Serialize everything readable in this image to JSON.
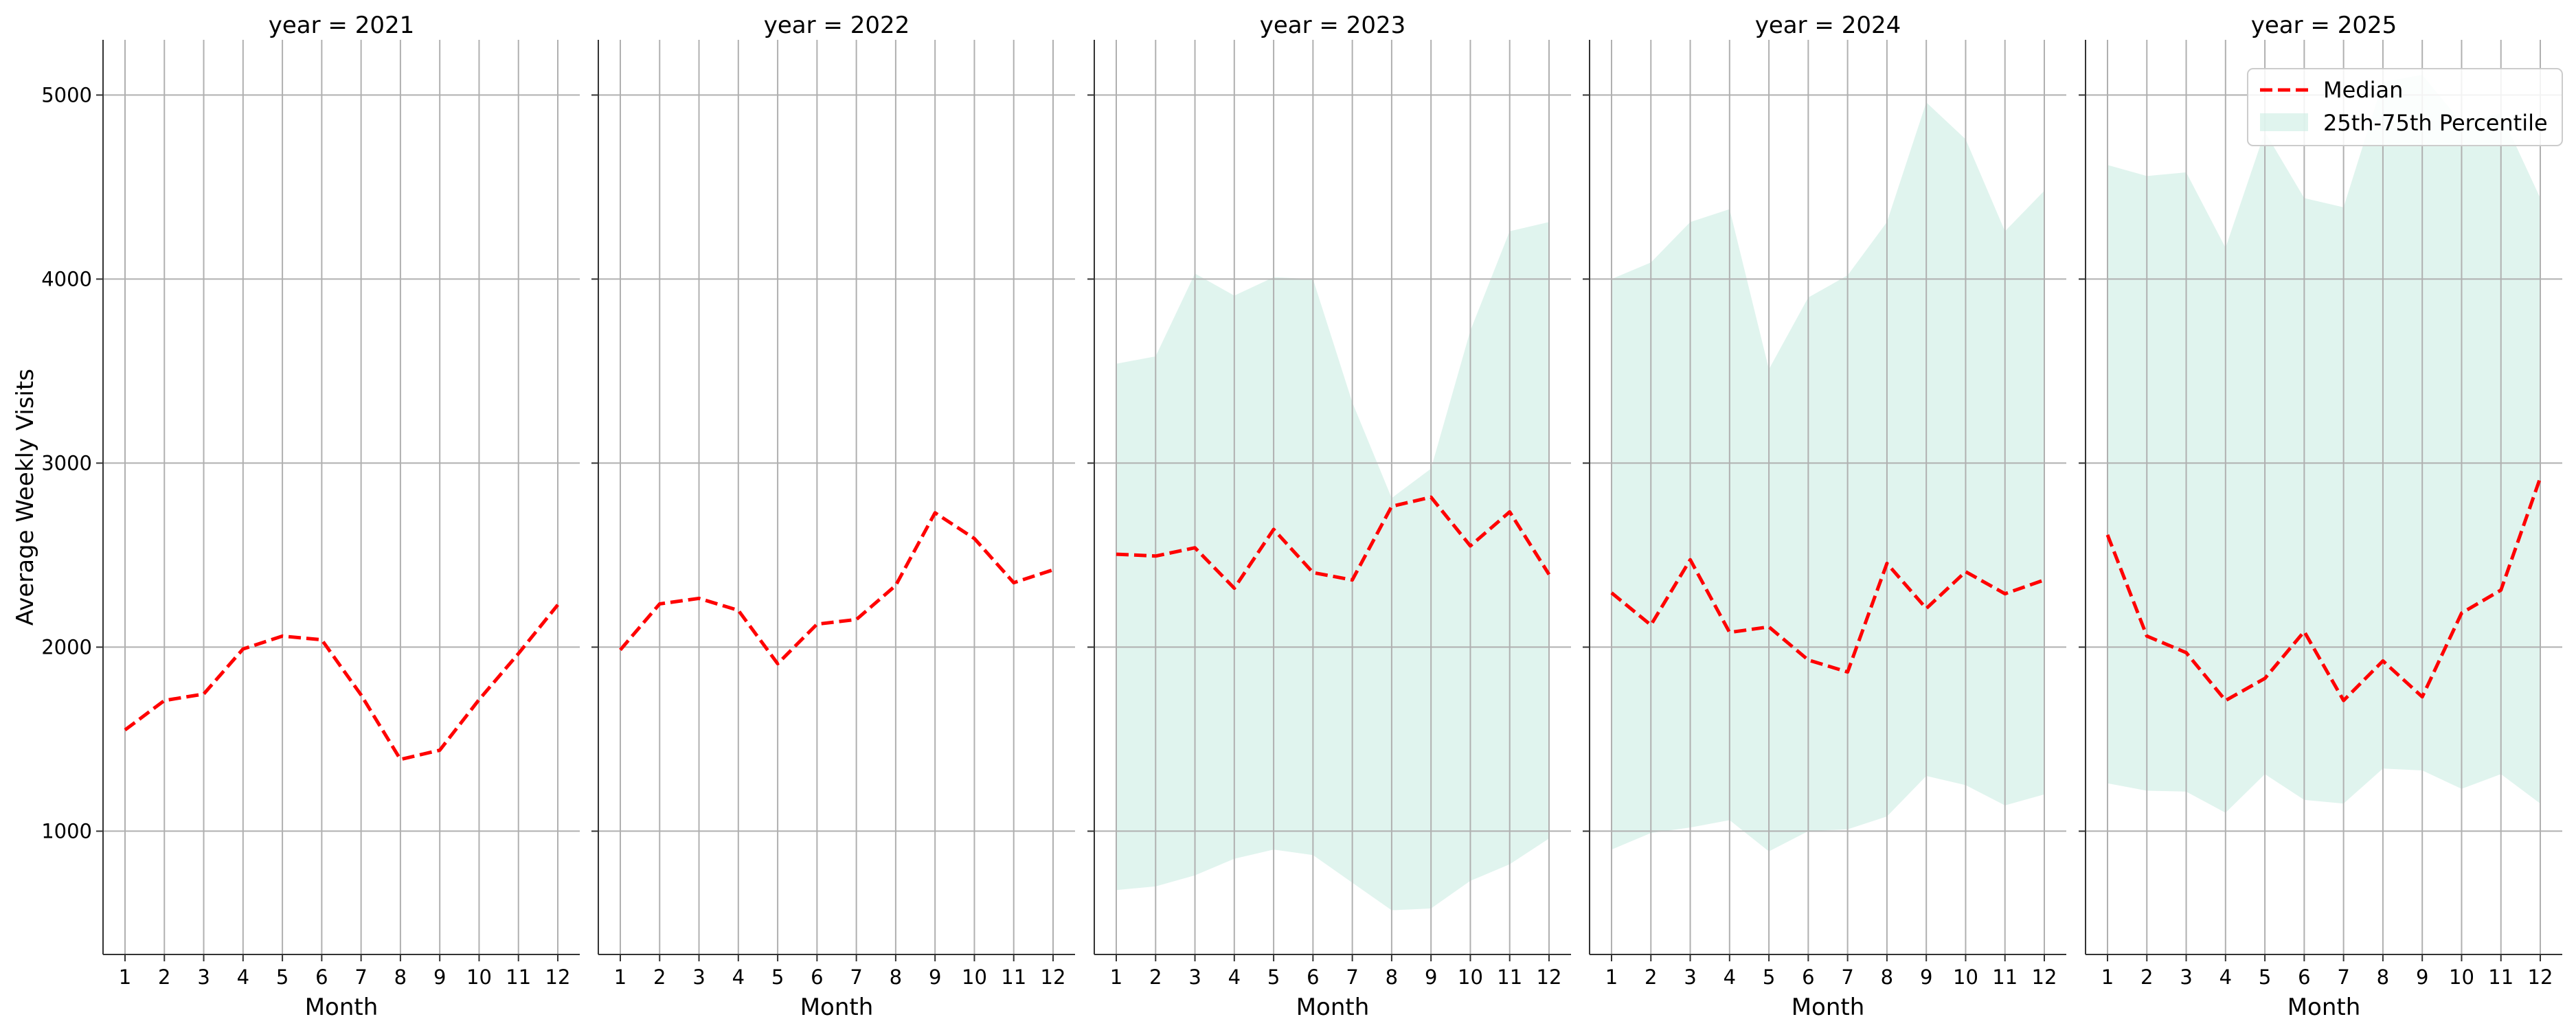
{
  "chart_data": {
    "type": "line",
    "ylabel": "Average Weekly Visits",
    "xlabel": "Month",
    "x": [
      1,
      2,
      3,
      4,
      5,
      6,
      7,
      8,
      9,
      10,
      11,
      12
    ],
    "x_tick_labels": [
      "1",
      "2",
      "3",
      "4",
      "5",
      "6",
      "7",
      "8",
      "9",
      "10",
      "11",
      "12"
    ],
    "ylim": [
      330,
      5300
    ],
    "y_ticks": [
      1000,
      2000,
      3000,
      4000,
      5000
    ],
    "y_tick_labels": [
      "1000",
      "2000",
      "3000",
      "4000",
      "5000"
    ],
    "grid": true,
    "legend": {
      "placement": "top-right",
      "entries": [
        "Median",
        "25th-75th Percentile"
      ]
    },
    "colors": {
      "median": "#ff0000",
      "band": "#c6ebe0",
      "grid": "#b0b0b0",
      "axis": "#000000"
    },
    "panels": [
      {
        "title": "year = 2021",
        "series": [
          {
            "name": "Median",
            "values": [
              1550,
              1710,
              1745,
              1990,
              2060,
              2040,
              1740,
              1390,
              1440,
              1715,
              1965,
              2230
            ]
          },
          {
            "name": "25th-75th Percentile",
            "lower": null,
            "upper": null
          }
        ]
      },
      {
        "title": "year = 2022",
        "series": [
          {
            "name": "Median",
            "values": [
              1985,
              2235,
              2265,
              2200,
              1910,
              2125,
              2150,
              2335,
              2730,
              2590,
              2350,
              2420
            ]
          },
          {
            "name": "25th-75th Percentile",
            "lower": null,
            "upper": null
          }
        ]
      },
      {
        "title": "year = 2023",
        "series": [
          {
            "name": "Median",
            "values": [
              2505,
              2495,
              2540,
              2320,
              2640,
              2405,
              2365,
              2765,
              2815,
              2550,
              2735,
              2395
            ]
          },
          {
            "name": "25th-75th Percentile",
            "lower": [
              680,
              700,
              760,
              850,
              900,
              870,
              720,
              570,
              580,
              730,
              820,
              960
            ],
            "upper": [
              3540,
              3580,
              4030,
              3910,
              4010,
              4000,
              3330,
              2810,
              2970,
              3720,
              4260,
              4310
            ]
          }
        ]
      },
      {
        "title": "year = 2024",
        "series": [
          {
            "name": "Median",
            "values": [
              2295,
              2120,
              2475,
              2080,
              2110,
              1930,
              1865,
              2455,
              2210,
              2410,
              2290,
              2365
            ]
          },
          {
            "name": "25th-75th Percentile",
            "lower": [
              900,
              990,
              1020,
              1060,
              890,
              1000,
              1010,
              1080,
              1300,
              1250,
              1140,
              1200
            ],
            "upper": [
              4000,
              4090,
              4310,
              4380,
              3510,
              3900,
              4020,
              4310,
              4960,
              4760,
              4260,
              4480
            ]
          }
        ]
      },
      {
        "title": "year = 2025",
        "series": [
          {
            "name": "Median",
            "values": [
              2610,
              2060,
              1970,
              1710,
              1830,
              2085,
              1710,
              1925,
              1730,
              2185,
              2310,
              2920
            ]
          },
          {
            "name": "25th-75th Percentile",
            "lower": [
              1260,
              1220,
              1215,
              1100,
              1310,
              1170,
              1150,
              1340,
              1330,
              1230,
              1310,
              1150
            ],
            "upper": [
              4620,
              4560,
              4580,
              4170,
              4800,
              4440,
              4390,
              5070,
              5110,
              4850,
              4900,
              4440
            ]
          }
        ]
      }
    ]
  }
}
